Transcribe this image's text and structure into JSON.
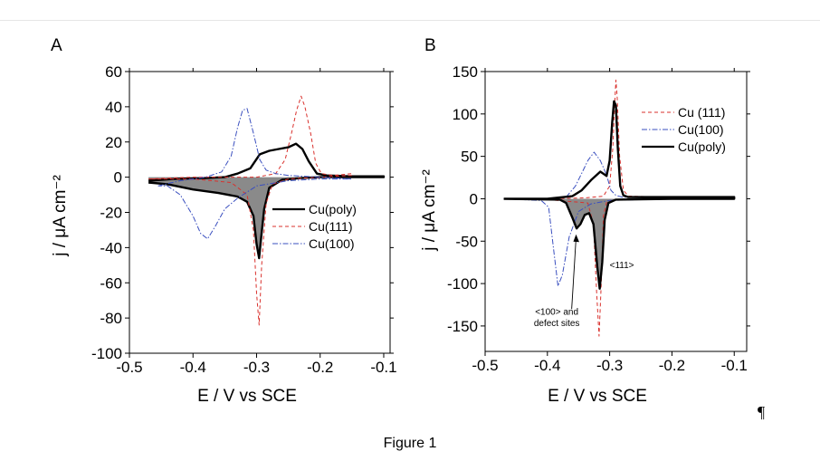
{
  "caption": "Figure 1",
  "pilcrow": "¶",
  "chart_data": [
    {
      "panel": "A",
      "type": "line",
      "xlabel": "E / V vs SCE",
      "ylabel": "j / μA cm⁻²",
      "xlim": [
        -0.5,
        -0.09
      ],
      "ylim": [
        -100,
        60
      ],
      "xticks": [
        -0.5,
        -0.4,
        -0.3,
        -0.2,
        -0.1
      ],
      "yticks": [
        -100,
        -80,
        -60,
        -40,
        -20,
        0,
        20,
        40,
        60
      ],
      "xtick_labels": [
        "-0.5",
        "-0.4",
        "-0.3",
        "-0.2",
        "-0.1"
      ],
      "ytick_labels": [
        "-100",
        "-80",
        "-60",
        "-40",
        "-20",
        "0",
        "20",
        "40",
        "60"
      ],
      "legend_position": "lower-right",
      "series": [
        {
          "name": "Cu(poly)",
          "style": "solid",
          "color": "#000000",
          "filled": true,
          "anodic": [
            [
              -0.47,
              -2
            ],
            [
              -0.43,
              -1
            ],
            [
              -0.38,
              -0.5
            ],
            [
              -0.35,
              0
            ],
            [
              -0.33,
              2
            ],
            [
              -0.31,
              5
            ],
            [
              -0.295,
              13
            ],
            [
              -0.28,
              15
            ],
            [
              -0.265,
              16
            ],
            [
              -0.25,
              17
            ],
            [
              -0.238,
              19
            ],
            [
              -0.228,
              16
            ],
            [
              -0.218,
              9
            ],
            [
              -0.205,
              2
            ],
            [
              -0.19,
              1
            ],
            [
              -0.15,
              0.5
            ],
            [
              -0.1,
              0.5
            ]
          ],
          "cathodic": [
            [
              -0.1,
              0
            ],
            [
              -0.15,
              0
            ],
            [
              -0.2,
              0
            ],
            [
              -0.23,
              -0.5
            ],
            [
              -0.26,
              -1.5
            ],
            [
              -0.28,
              -6
            ],
            [
              -0.288,
              -18
            ],
            [
              -0.293,
              -35
            ],
            [
              -0.296,
              -46
            ],
            [
              -0.3,
              -38
            ],
            [
              -0.305,
              -22
            ],
            [
              -0.315,
              -14
            ],
            [
              -0.33,
              -11
            ],
            [
              -0.36,
              -9
            ],
            [
              -0.4,
              -7
            ],
            [
              -0.44,
              -4
            ],
            [
              -0.47,
              -3
            ]
          ]
        },
        {
          "name": "Cu(111)",
          "style": "dashed",
          "color": "#d9302c",
          "anodic": [
            [
              -0.47,
              -1
            ],
            [
              -0.4,
              0
            ],
            [
              -0.35,
              0
            ],
            [
              -0.3,
              0
            ],
            [
              -0.27,
              2
            ],
            [
              -0.255,
              10
            ],
            [
              -0.245,
              25
            ],
            [
              -0.237,
              38
            ],
            [
              -0.23,
              46
            ],
            [
              -0.224,
              40
            ],
            [
              -0.215,
              25
            ],
            [
              -0.207,
              8
            ],
            [
              -0.198,
              2
            ],
            [
              -0.18,
              1
            ],
            [
              -0.15,
              2
            ]
          ],
          "cathodic": [
            [
              -0.15,
              1
            ],
            [
              -0.2,
              0
            ],
            [
              -0.25,
              -1
            ],
            [
              -0.275,
              -4
            ],
            [
              -0.285,
              -15
            ],
            [
              -0.292,
              -50
            ],
            [
              -0.296,
              -84
            ],
            [
              -0.3,
              -66
            ],
            [
              -0.305,
              -30
            ],
            [
              -0.315,
              -10
            ],
            [
              -0.34,
              -3
            ],
            [
              -0.4,
              -1
            ],
            [
              -0.47,
              -1
            ]
          ]
        },
        {
          "name": "Cu(100)",
          "style": "dashdot",
          "color": "#3a4fbf",
          "anodic": [
            [
              -0.455,
              -5
            ],
            [
              -0.42,
              -2
            ],
            [
              -0.38,
              0
            ],
            [
              -0.355,
              3
            ],
            [
              -0.34,
              12
            ],
            [
              -0.33,
              28
            ],
            [
              -0.322,
              38
            ],
            [
              -0.315,
              39
            ],
            [
              -0.305,
              25
            ],
            [
              -0.295,
              10
            ],
            [
              -0.285,
              4
            ],
            [
              -0.27,
              2
            ],
            [
              -0.25,
              1
            ],
            [
              -0.2,
              0
            ],
            [
              -0.15,
              -1
            ]
          ],
          "cathodic": [
            [
              -0.15,
              -1
            ],
            [
              -0.2,
              -1
            ],
            [
              -0.25,
              -2
            ],
            [
              -0.3,
              -5
            ],
            [
              -0.33,
              -12
            ],
            [
              -0.35,
              -18
            ],
            [
              -0.365,
              -28
            ],
            [
              -0.377,
              -35
            ],
            [
              -0.388,
              -32
            ],
            [
              -0.4,
              -22
            ],
            [
              -0.42,
              -10
            ],
            [
              -0.44,
              -5
            ],
            [
              -0.455,
              -5
            ]
          ]
        }
      ]
    },
    {
      "panel": "B",
      "type": "line",
      "xlabel": "E / V vs SCE",
      "ylabel": "j / μA cm⁻²",
      "xlim": [
        -0.5,
        -0.08
      ],
      "ylim": [
        -180,
        150
      ],
      "xticks": [
        -0.5,
        -0.4,
        -0.3,
        -0.2,
        -0.1
      ],
      "yticks": [
        -150,
        -100,
        -50,
        0,
        50,
        100,
        150
      ],
      "xtick_labels": [
        "-0.5",
        "-0.4",
        "-0.3",
        "-0.2",
        "-0.1"
      ],
      "ytick_labels": [
        "-150",
        "-100",
        "-50",
        "0",
        "50",
        "100",
        "150"
      ],
      "legend_position": "top-right",
      "annotations": [
        {
          "text": "<111>",
          "x": -0.3,
          "y": -82
        },
        {
          "text": "<100> and",
          "x": -0.385,
          "y": -137
        },
        {
          "text": "defect sites",
          "x": -0.385,
          "y": -150
        }
      ],
      "series": [
        {
          "name": "Cu (111)",
          "style": "dashed",
          "color": "#d9302c",
          "anodic": [
            [
              -0.47,
              0
            ],
            [
              -0.4,
              0
            ],
            [
              -0.34,
              1
            ],
            [
              -0.31,
              3
            ],
            [
              -0.3,
              15
            ],
            [
              -0.295,
              60
            ],
            [
              -0.292,
              110
            ],
            [
              -0.29,
              140
            ],
            [
              -0.288,
              120
            ],
            [
              -0.284,
              50
            ],
            [
              -0.278,
              10
            ],
            [
              -0.27,
              3
            ],
            [
              -0.2,
              2
            ],
            [
              -0.1,
              2
            ]
          ],
          "cathodic": [
            [
              -0.1,
              1
            ],
            [
              -0.2,
              0
            ],
            [
              -0.29,
              -1
            ],
            [
              -0.305,
              -4
            ],
            [
              -0.31,
              -20
            ],
            [
              -0.313,
              -90
            ],
            [
              -0.317,
              -162
            ],
            [
              -0.321,
              -110
            ],
            [
              -0.326,
              -30
            ],
            [
              -0.335,
              -5
            ],
            [
              -0.4,
              -1
            ],
            [
              -0.47,
              0
            ]
          ]
        },
        {
          "name": "Cu(100)",
          "style": "dashdot",
          "color": "#3a4fbf",
          "anodic": [
            [
              -0.47,
              0
            ],
            [
              -0.4,
              0
            ],
            [
              -0.37,
              2
            ],
            [
              -0.355,
              15
            ],
            [
              -0.345,
              30
            ],
            [
              -0.335,
              45
            ],
            [
              -0.325,
              55
            ],
            [
              -0.315,
              45
            ],
            [
              -0.305,
              28
            ],
            [
              -0.298,
              10
            ],
            [
              -0.29,
              4
            ],
            [
              -0.28,
              2
            ],
            [
              -0.2,
              1
            ],
            [
              -0.1,
              1
            ]
          ],
          "cathodic": [
            [
              -0.1,
              0
            ],
            [
              -0.2,
              0
            ],
            [
              -0.3,
              -2
            ],
            [
              -0.33,
              -6
            ],
            [
              -0.35,
              -15
            ],
            [
              -0.365,
              -45
            ],
            [
              -0.376,
              -90
            ],
            [
              -0.383,
              -103
            ],
            [
              -0.39,
              -60
            ],
            [
              -0.398,
              -10
            ],
            [
              -0.41,
              -2
            ],
            [
              -0.47,
              0
            ]
          ]
        },
        {
          "name": "Cu(poly)",
          "style": "solid",
          "color": "#000000",
          "filled": true,
          "anodic": [
            [
              -0.47,
              0
            ],
            [
              -0.4,
              0
            ],
            [
              -0.36,
              3
            ],
            [
              -0.345,
              10
            ],
            [
              -0.33,
              22
            ],
            [
              -0.315,
              32
            ],
            [
              -0.305,
              27
            ],
            [
              -0.3,
              45
            ],
            [
              -0.296,
              90
            ],
            [
              -0.293,
              115
            ],
            [
              -0.29,
              110
            ],
            [
              -0.287,
              60
            ],
            [
              -0.283,
              15
            ],
            [
              -0.278,
              4
            ],
            [
              -0.27,
              2
            ],
            [
              -0.2,
              2
            ],
            [
              -0.1,
              2
            ]
          ],
          "cathodic": [
            [
              -0.1,
              0
            ],
            [
              -0.2,
              0
            ],
            [
              -0.29,
              -1
            ],
            [
              -0.302,
              -5
            ],
            [
              -0.308,
              -25
            ],
            [
              -0.312,
              -75
            ],
            [
              -0.316,
              -106
            ],
            [
              -0.32,
              -80
            ],
            [
              -0.326,
              -30
            ],
            [
              -0.333,
              -17
            ],
            [
              -0.34,
              -19
            ],
            [
              -0.347,
              -30
            ],
            [
              -0.353,
              -35
            ],
            [
              -0.36,
              -22
            ],
            [
              -0.37,
              -5
            ],
            [
              -0.38,
              -1
            ],
            [
              -0.47,
              0
            ]
          ]
        }
      ]
    }
  ]
}
